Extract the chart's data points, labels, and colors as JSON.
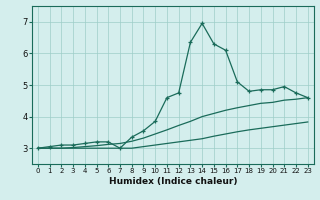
{
  "xlabel": "Humidex (Indice chaleur)",
  "background_color": "#d4eeed",
  "grid_color": "#9ecdc8",
  "line_color": "#1a6b5a",
  "xlim": [
    -0.5,
    23.5
  ],
  "ylim": [
    2.5,
    7.5
  ],
  "xticks": [
    0,
    1,
    2,
    3,
    4,
    5,
    6,
    7,
    8,
    9,
    10,
    11,
    12,
    13,
    14,
    15,
    16,
    17,
    18,
    19,
    20,
    21,
    22,
    23
  ],
  "yticks": [
    3,
    4,
    5,
    6,
    7
  ],
  "main_y": [
    3.0,
    3.05,
    3.1,
    3.1,
    3.15,
    3.2,
    3.2,
    3.0,
    3.35,
    3.55,
    3.85,
    4.6,
    4.75,
    6.35,
    6.95,
    6.3,
    6.1,
    5.1,
    4.8,
    4.85,
    4.85,
    4.95,
    4.75,
    4.6
  ],
  "lower_y": [
    3.0,
    3.0,
    3.0,
    3.0,
    3.0,
    3.0,
    3.0,
    3.0,
    3.0,
    3.05,
    3.1,
    3.15,
    3.2,
    3.25,
    3.3,
    3.38,
    3.45,
    3.52,
    3.58,
    3.63,
    3.68,
    3.73,
    3.78,
    3.83
  ],
  "upper_y": [
    3.0,
    3.0,
    3.0,
    3.02,
    3.05,
    3.08,
    3.12,
    3.15,
    3.22,
    3.32,
    3.45,
    3.58,
    3.72,
    3.85,
    4.0,
    4.1,
    4.2,
    4.28,
    4.35,
    4.42,
    4.45,
    4.52,
    4.55,
    4.6
  ]
}
